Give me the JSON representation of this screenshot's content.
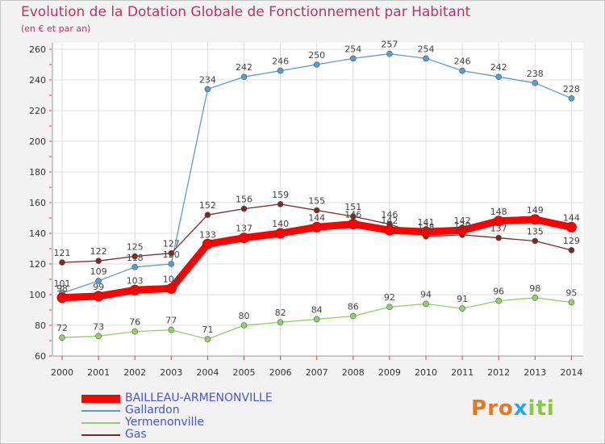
{
  "header": {
    "title": "Evolution de la Dotation Globale de Fonctionnement par Habitant",
    "subtitle": "(en € et par an)"
  },
  "logo": {
    "text": "Proxiti",
    "colors": [
      "#e87722",
      "#e87722",
      "#e87722",
      "#2aa8e0",
      "#8cc63f",
      "#8cc63f",
      "#8cc63f"
    ]
  },
  "chart_data": {
    "type": "line",
    "title": "Evolution de la Dotation Globale de Fonctionnement par Habitant",
    "subtitle": "(en € et par an)",
    "xlabel": "",
    "ylabel": "",
    "x": [
      "2000",
      "2001",
      "2002",
      "2003",
      "2004",
      "2005",
      "2006",
      "2007",
      "2008",
      "2009",
      "2010",
      "2011",
      "2012",
      "2013",
      "2014"
    ],
    "ylim": [
      60,
      260
    ],
    "yticks": [
      60,
      80,
      100,
      120,
      140,
      160,
      180,
      200,
      220,
      240,
      260
    ],
    "grid": true,
    "legend_position": "bottom-left",
    "series": [
      {
        "name": "BAILLEAU-ARMENONVILLE",
        "color": "#ff0000",
        "values": [
          98,
          99,
          103,
          104,
          133,
          137,
          140,
          144,
          146,
          142,
          141,
          142,
          148,
          149,
          144
        ],
        "labels": [
          "98",
          "99",
          "103",
          "104",
          "133",
          "137",
          "140",
          "144",
          "146",
          "142",
          "141",
          "142",
          "148",
          "149",
          "144"
        ],
        "emphasis": true
      },
      {
        "name": "Gallardon",
        "color": "#5a9bd5",
        "values": [
          101,
          109,
          118,
          120,
          234,
          242,
          246,
          250,
          254,
          257,
          254,
          246,
          242,
          238,
          228
        ],
        "labels": [
          "101",
          "109",
          "118",
          "120",
          "234",
          "242",
          "246",
          "250",
          "254",
          "257",
          "254",
          "246",
          "242",
          "238",
          "228"
        ]
      },
      {
        "name": "Yermenonville",
        "color": "#8fd16a",
        "values": [
          72,
          73,
          76,
          77,
          71,
          80,
          82,
          84,
          86,
          92,
          94,
          91,
          96,
          98,
          95
        ],
        "labels": [
          "72",
          "73",
          "76",
          "77",
          "71",
          "80",
          "82",
          "84",
          "86",
          "92",
          "94",
          "91",
          "96",
          "98",
          "95"
        ]
      },
      {
        "name": "Gas",
        "color": "#7a2a2a",
        "values": [
          121,
          122,
          125,
          127,
          152,
          156,
          159,
          155,
          151,
          146,
          138,
          139,
          137,
          135,
          129
        ],
        "labels": [
          "121",
          "122",
          "125",
          "127",
          "152",
          "156",
          "159",
          "155",
          "151",
          "146",
          "138",
          "139",
          "137",
          "135",
          "129"
        ]
      }
    ]
  }
}
